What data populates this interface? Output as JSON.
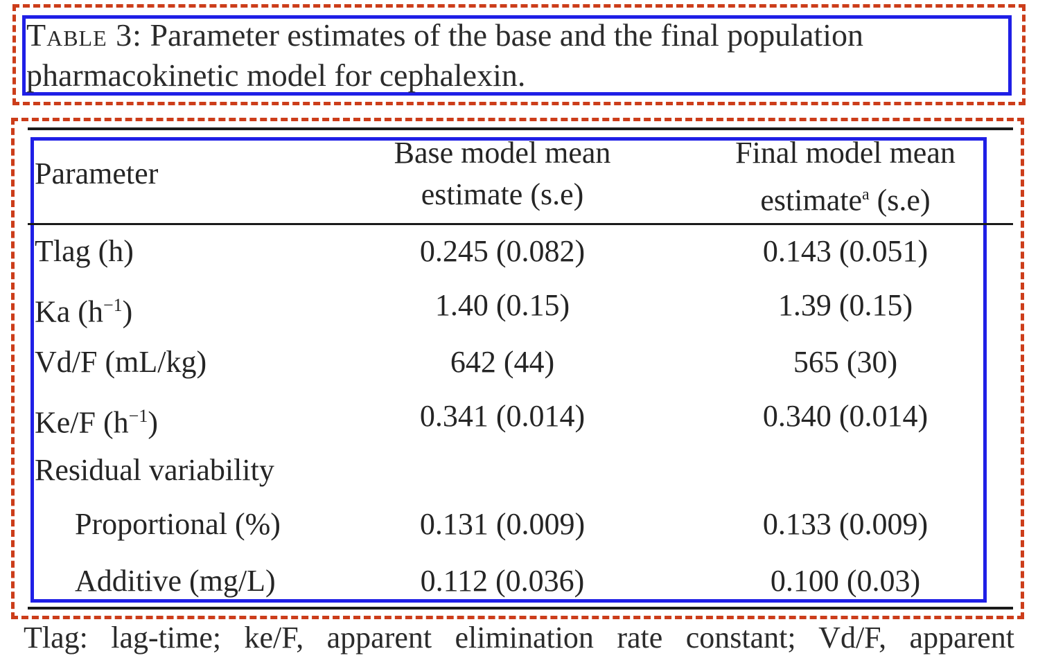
{
  "caption": {
    "label": "Table 3:",
    "text": "Parameter estimates of the base and the final population pharmacokinetic model for cephalexin."
  },
  "table": {
    "headers": {
      "parameter": "Parameter",
      "base_line1": "Base model mean",
      "base_line2": "estimate (s.e)",
      "final_line1": "Final model mean",
      "final_line2_a": "estimate",
      "final_line2_sup": "a",
      "final_line2_b": " (s.e)"
    },
    "rows": [
      {
        "param": "Tlag (h)",
        "base": "0.245 (0.082)",
        "final": "0.143 (0.051)"
      },
      {
        "param_a": "Ka (h",
        "param_sup": "−1",
        "param_b": ")",
        "base": "1.40 (0.15)",
        "final": "1.39 (0.15)"
      },
      {
        "param": "Vd/F (mL/kg)",
        "base": "642 (44)",
        "final": "565 (30)"
      },
      {
        "param_a": "Ke/F (h",
        "param_sup": "−1",
        "param_b": ")",
        "base": "0.341 (0.014)",
        "final": "0.340 (0.014)"
      },
      {
        "param": "Residual variability"
      },
      {
        "param": "Proportional (%)",
        "base": "0.131 (0.009)",
        "final": "0.133 (0.009)"
      },
      {
        "param": "Additive (mg/L)",
        "base": "0.112 (0.036)",
        "final": "0.100 (0.03)"
      }
    ]
  },
  "footnote": "Tlag: lag-time; ke/F, apparent elimination rate constant; Vd/F, apparent"
}
